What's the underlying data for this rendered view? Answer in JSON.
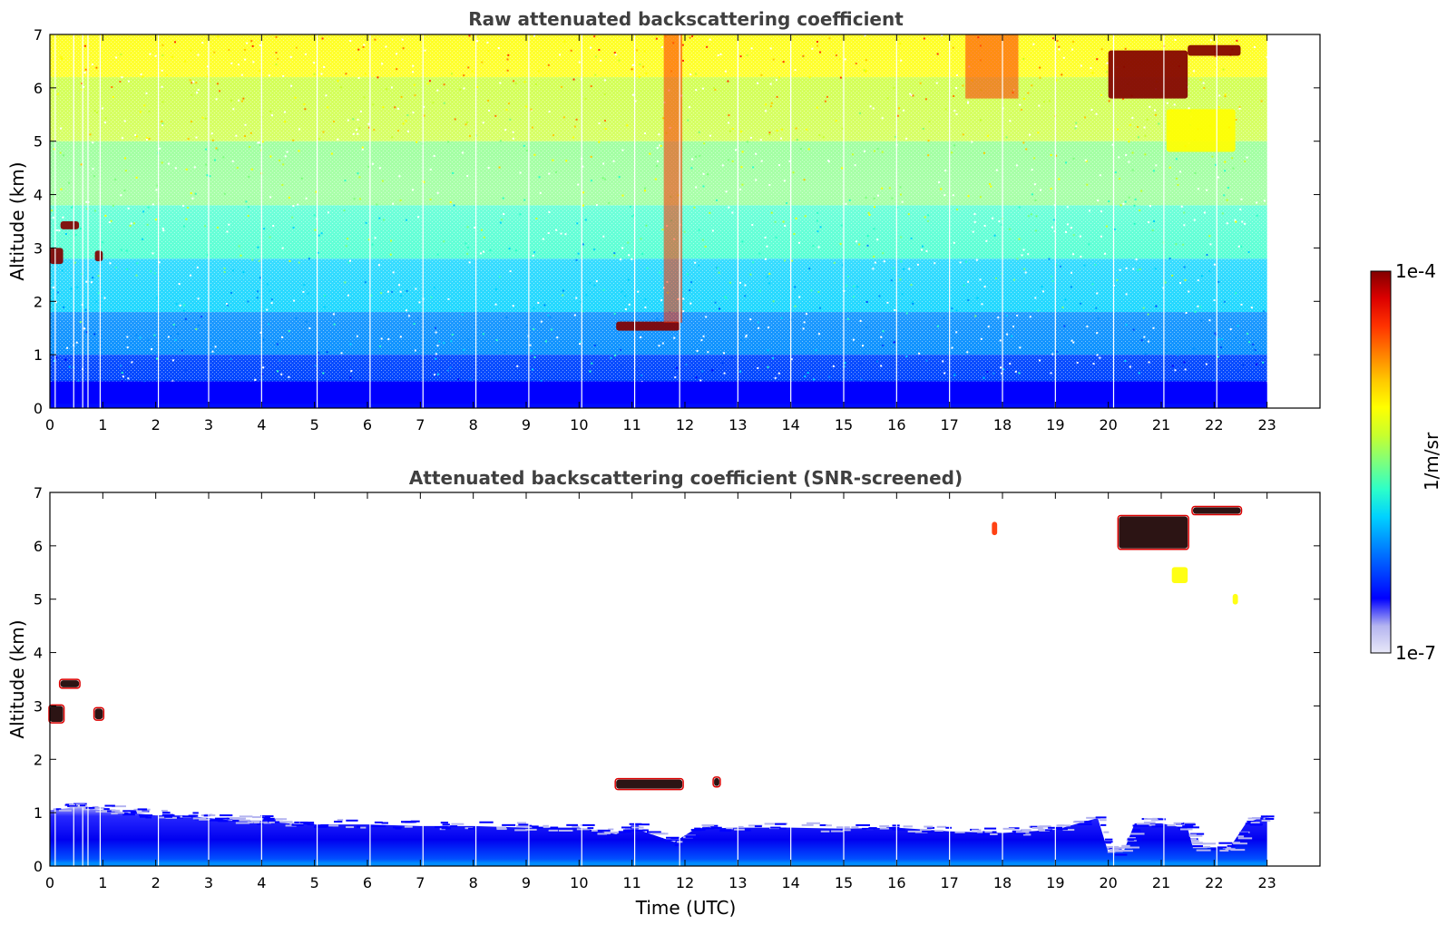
{
  "colors": {
    "background": "#ffffff",
    "title": "#404040",
    "colormap": [
      "#e8e8f8",
      "#b4b4f0",
      "#0000ff",
      "#0046ff",
      "#008cff",
      "#00d2ff",
      "#2dffc8",
      "#7dff7d",
      "#c8ff2d",
      "#ffff00",
      "#ffc800",
      "#ff7d00",
      "#ff3200",
      "#dc0000",
      "#820000"
    ]
  },
  "colorbar": {
    "label": "1/m/sr",
    "max_label": "1e-4",
    "min_label": "1e-7",
    "scale": "log",
    "range": [
      1e-07,
      0.0001
    ]
  },
  "chart_data": [
    {
      "type": "heatmap",
      "title": "Raw attenuated backscattering coefficient",
      "xlabel": "",
      "ylabel": "Altitude (km)",
      "xlim": [
        0,
        24
      ],
      "ylim": [
        0,
        7
      ],
      "x_ticks": [
        0,
        1,
        2,
        3,
        4,
        5,
        6,
        7,
        8,
        9,
        10,
        11,
        12,
        13,
        14,
        15,
        16,
        17,
        18,
        19,
        20,
        21,
        22,
        23
      ],
      "y_ticks": [
        0,
        1,
        2,
        3,
        4,
        5,
        6,
        7
      ],
      "data_time_range": [
        0,
        23
      ],
      "vertical_gaps_utc": [
        0.1,
        0.45,
        0.62,
        0.72,
        0.95,
        2.05,
        3.0,
        4.0,
        5.05,
        6.05,
        7.05,
        8.05,
        9.05,
        10.05,
        11.05,
        11.9,
        13.0,
        14.0,
        15.0,
        16.0,
        17.0,
        18.0,
        19.0,
        20.1,
        21.05,
        22.05
      ],
      "features": [
        {
          "name": "boundary layer",
          "x_range": [
            0,
            23
          ],
          "y_range": [
            0,
            0.5
          ],
          "level": "low"
        },
        {
          "name": "cloud",
          "x_range": [
            0,
            0.25
          ],
          "y_range": [
            2.7,
            3.0
          ],
          "level": "max"
        },
        {
          "name": "cloud",
          "x_range": [
            0.2,
            0.55
          ],
          "y_range": [
            3.35,
            3.5
          ],
          "level": "max"
        },
        {
          "name": "cloud",
          "x_range": [
            0.85,
            1.0
          ],
          "y_range": [
            2.75,
            2.95
          ],
          "level": "max"
        },
        {
          "name": "cloud",
          "x_range": [
            10.7,
            11.9
          ],
          "y_range": [
            1.45,
            1.62
          ],
          "level": "max"
        },
        {
          "name": "cloud",
          "x_range": [
            20.0,
            21.5
          ],
          "y_range": [
            5.8,
            6.7
          ],
          "level": "max"
        },
        {
          "name": "cloud",
          "x_range": [
            21.5,
            22.5
          ],
          "y_range": [
            6.6,
            6.8
          ],
          "level": "max"
        },
        {
          "name": "enhanced column",
          "x_range": [
            11.6,
            11.95
          ],
          "y_range": [
            1.6,
            7.0
          ],
          "level": "high"
        },
        {
          "name": "enhanced region",
          "x_range": [
            17.3,
            18.3
          ],
          "y_range": [
            5.8,
            7.0
          ],
          "level": "high"
        },
        {
          "name": "ice virga",
          "x_range": [
            21.1,
            22.4
          ],
          "y_range": [
            4.8,
            5.6
          ],
          "level": "mid"
        }
      ]
    },
    {
      "type": "heatmap",
      "title": "Attenuated backscattering coefficient (SNR-screened)",
      "xlabel": "Time (UTC)",
      "ylabel": "Altitude (km)",
      "xlim": [
        0,
        24
      ],
      "ylim": [
        0,
        7
      ],
      "x_ticks": [
        0,
        1,
        2,
        3,
        4,
        5,
        6,
        7,
        8,
        9,
        10,
        11,
        12,
        13,
        14,
        15,
        16,
        17,
        18,
        19,
        20,
        21,
        22,
        23
      ],
      "y_ticks": [
        0,
        1,
        2,
        3,
        4,
        5,
        6,
        7
      ],
      "data_time_range": [
        0,
        23
      ],
      "boundary_layer_top_km": [
        [
          0,
          1.05
        ],
        [
          0.5,
          1.1
        ],
        [
          1,
          1.05
        ],
        [
          1.5,
          1.0
        ],
        [
          2,
          0.95
        ],
        [
          2.5,
          0.95
        ],
        [
          3,
          0.9
        ],
        [
          3.5,
          0.85
        ],
        [
          4,
          0.85
        ],
        [
          4.5,
          0.8
        ],
        [
          5,
          0.78
        ],
        [
          6,
          0.78
        ],
        [
          7,
          0.75
        ],
        [
          8,
          0.75
        ],
        [
          9,
          0.72
        ],
        [
          10,
          0.72
        ],
        [
          10.7,
          0.6
        ],
        [
          11,
          0.72
        ],
        [
          11.8,
          0.45
        ],
        [
          12.2,
          0.7
        ],
        [
          13,
          0.72
        ],
        [
          14,
          0.72
        ],
        [
          15,
          0.7
        ],
        [
          16,
          0.72
        ],
        [
          17,
          0.65
        ],
        [
          18,
          0.62
        ],
        [
          18.5,
          0.65
        ],
        [
          19,
          0.68
        ],
        [
          19.8,
          0.9
        ],
        [
          20.0,
          0.25
        ],
        [
          20.3,
          0.3
        ],
        [
          20.5,
          0.8
        ],
        [
          21,
          0.8
        ],
        [
          21.5,
          0.7
        ],
        [
          21.6,
          0.35
        ],
        [
          22.3,
          0.35
        ],
        [
          22.6,
          0.8
        ],
        [
          23,
          0.95
        ]
      ],
      "features": [
        {
          "name": "cloud",
          "x_range": [
            0,
            0.25
          ],
          "y_range": [
            2.7,
            3.0
          ],
          "level": "saturated"
        },
        {
          "name": "cloud",
          "x_range": [
            0.2,
            0.55
          ],
          "y_range": [
            3.35,
            3.48
          ],
          "level": "saturated"
        },
        {
          "name": "cloud",
          "x_range": [
            0.85,
            1.0
          ],
          "y_range": [
            2.75,
            2.95
          ],
          "level": "saturated"
        },
        {
          "name": "cloud",
          "x_range": [
            10.7,
            11.95
          ],
          "y_range": [
            1.45,
            1.62
          ],
          "level": "saturated"
        },
        {
          "name": "cloud",
          "x_range": [
            12.55,
            12.65
          ],
          "y_range": [
            1.5,
            1.65
          ],
          "level": "saturated"
        },
        {
          "name": "cloud",
          "x_range": [
            20.2,
            21.5
          ],
          "y_range": [
            5.95,
            6.55
          ],
          "level": "saturated"
        },
        {
          "name": "cloud",
          "x_range": [
            21.6,
            22.5
          ],
          "y_range": [
            6.6,
            6.72
          ],
          "level": "saturated"
        },
        {
          "name": "cloud",
          "x_range": [
            17.8,
            17.9
          ],
          "y_range": [
            6.2,
            6.45
          ],
          "level": "high"
        },
        {
          "name": "virga",
          "x_range": [
            21.2,
            21.5
          ],
          "y_range": [
            5.3,
            5.6
          ],
          "level": "mid"
        },
        {
          "name": "virga",
          "x_range": [
            22.35,
            22.45
          ],
          "y_range": [
            4.9,
            5.1
          ],
          "level": "mid"
        }
      ]
    }
  ]
}
